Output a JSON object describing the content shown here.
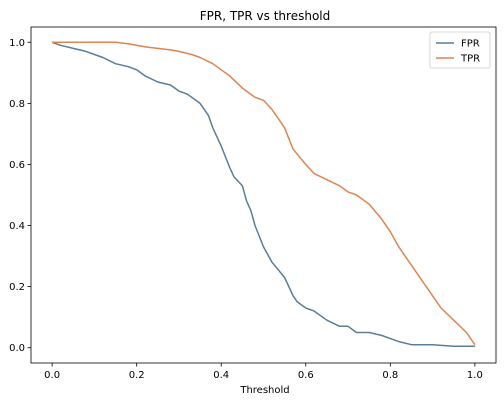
{
  "chart_data": {
    "type": "line",
    "title": "FPR, TPR vs threshold",
    "xlabel": "Threshold",
    "ylabel": "",
    "xlim": [
      -0.05,
      1.05
    ],
    "ylim": [
      -0.05,
      1.05
    ],
    "xticks": [
      0.0,
      0.2,
      0.4,
      0.6,
      0.8,
      1.0
    ],
    "xtick_labels": [
      "0.0",
      "0.2",
      "0.4",
      "0.6",
      "0.8",
      "1.0"
    ],
    "yticks": [
      0.0,
      0.2,
      0.4,
      0.6,
      0.8,
      1.0
    ],
    "ytick_labels": [
      "0.0",
      "0.2",
      "0.4",
      "0.6",
      "0.8",
      "1.0"
    ],
    "legend": {
      "position": "top-right",
      "entries": [
        "FPR",
        "TPR"
      ]
    },
    "series": [
      {
        "name": "FPR",
        "color": "#5a7d9a",
        "x": [
          0.0,
          0.02,
          0.05,
          0.08,
          0.1,
          0.12,
          0.15,
          0.18,
          0.2,
          0.22,
          0.25,
          0.28,
          0.3,
          0.32,
          0.35,
          0.37,
          0.38,
          0.4,
          0.42,
          0.43,
          0.45,
          0.46,
          0.47,
          0.48,
          0.5,
          0.52,
          0.55,
          0.57,
          0.58,
          0.6,
          0.62,
          0.65,
          0.68,
          0.7,
          0.72,
          0.75,
          0.78,
          0.8,
          0.82,
          0.85,
          0.9,
          0.95,
          1.0
        ],
        "y": [
          1.0,
          0.99,
          0.98,
          0.97,
          0.96,
          0.95,
          0.93,
          0.92,
          0.91,
          0.89,
          0.87,
          0.86,
          0.84,
          0.83,
          0.8,
          0.76,
          0.72,
          0.66,
          0.59,
          0.56,
          0.53,
          0.48,
          0.45,
          0.4,
          0.33,
          0.28,
          0.23,
          0.17,
          0.15,
          0.13,
          0.12,
          0.09,
          0.07,
          0.07,
          0.05,
          0.05,
          0.04,
          0.03,
          0.02,
          0.01,
          0.01,
          0.005,
          0.005
        ]
      },
      {
        "name": "TPR",
        "color": "#dd8452",
        "x": [
          0.0,
          0.05,
          0.1,
          0.15,
          0.18,
          0.2,
          0.22,
          0.25,
          0.28,
          0.3,
          0.33,
          0.35,
          0.38,
          0.4,
          0.42,
          0.45,
          0.48,
          0.5,
          0.52,
          0.55,
          0.57,
          0.6,
          0.62,
          0.65,
          0.68,
          0.7,
          0.72,
          0.75,
          0.78,
          0.8,
          0.82,
          0.85,
          0.88,
          0.9,
          0.92,
          0.95,
          0.98,
          1.0
        ],
        "y": [
          1.0,
          1.0,
          1.0,
          1.0,
          0.995,
          0.99,
          0.985,
          0.98,
          0.975,
          0.97,
          0.96,
          0.95,
          0.93,
          0.91,
          0.89,
          0.85,
          0.82,
          0.81,
          0.78,
          0.72,
          0.65,
          0.6,
          0.57,
          0.55,
          0.53,
          0.51,
          0.5,
          0.47,
          0.42,
          0.38,
          0.33,
          0.27,
          0.21,
          0.17,
          0.13,
          0.09,
          0.05,
          0.01
        ]
      }
    ]
  }
}
